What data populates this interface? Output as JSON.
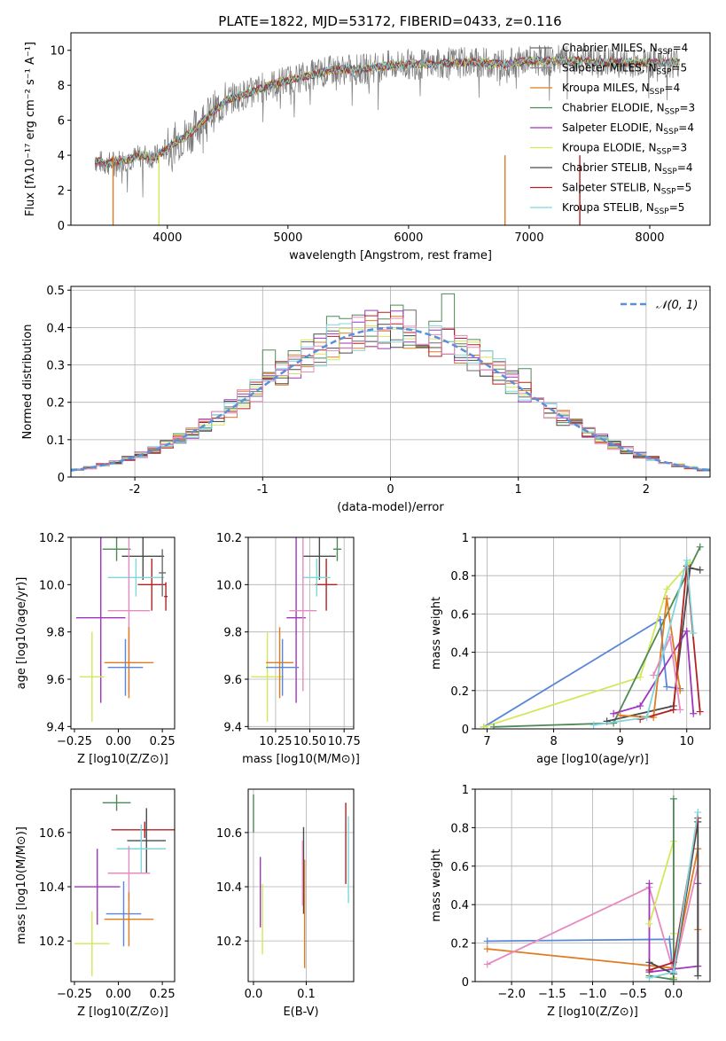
{
  "figure_title": "PLATE=1822, MJD=53172, FIBERID=0433, z=0.116",
  "colors": {
    "cm": "#6b6b6b",
    "sm": "#8a8a8a",
    "km": "#e07b1f",
    "ce": "#4f8a55",
    "se": "#a035c0",
    "ke": "#d2e85a",
    "cs": "#4a4a4a",
    "ss": "#b22222",
    "ks": "#7fd6dd",
    "pink": "#e68bc0",
    "blue": "#5b87d9"
  },
  "chart_data": [
    {
      "id": "spectrum",
      "type": "line",
      "xlabel": "wavelength [Angstrom, rest frame]",
      "ylabel": "Flux [fλ10⁻¹⁷ erg cm⁻² s⁻¹ A⁻¹]",
      "xlim": [
        3200,
        8500
      ],
      "ylim": [
        0,
        11
      ],
      "xticks": [
        4000,
        5000,
        6000,
        7000,
        8000
      ],
      "yticks": [
        0,
        2,
        4,
        6,
        8,
        10
      ],
      "legend_position": "top-right",
      "continuum": {
        "x": [
          3400,
          3500,
          3600,
          3700,
          3800,
          3900,
          4000,
          4100,
          4200,
          4300,
          4400,
          4500,
          4700,
          4800,
          5000,
          5200,
          5400,
          5600,
          5800,
          6000,
          6200,
          6400,
          6600,
          6800,
          7000,
          7200,
          7400,
          7600,
          7800,
          8000,
          8200
        ],
        "y": [
          3.7,
          3.5,
          3.7,
          3.8,
          4.0,
          3.9,
          4.4,
          4.9,
          5.3,
          6.0,
          6.6,
          7.2,
          7.6,
          7.9,
          8.3,
          8.6,
          8.9,
          8.9,
          9.1,
          9.2,
          9.2,
          9.3,
          9.3,
          9.2,
          9.4,
          9.4,
          9.4,
          9.3,
          9.3,
          9.3,
          9.3
        ]
      },
      "series": [
        {
          "name": "Chabrier MILES",
          "nssp": "4",
          "color_key": "cm"
        },
        {
          "name": "Salpeter MILES",
          "nssp": "5",
          "color_key": "sm"
        },
        {
          "name": "Kroupa MILES",
          "nssp": "4",
          "color_key": "km"
        },
        {
          "name": "Chabrier ELODIE",
          "nssp": "3",
          "color_key": "ce"
        },
        {
          "name": "Salpeter ELODIE",
          "nssp": "4",
          "color_key": "se"
        },
        {
          "name": "Kroupa ELODIE",
          "nssp": "3",
          "color_key": "ke"
        },
        {
          "name": "Chabrier STELIB",
          "nssp": "4",
          "color_key": "cs"
        },
        {
          "name": "Salpeter STELIB",
          "nssp": "5",
          "color_key": "ss"
        },
        {
          "name": "Kroupa STELIB",
          "nssp": "5",
          "color_key": "ks"
        }
      ]
    },
    {
      "id": "residuals",
      "type": "histogram",
      "xlabel": "(data-model)/error",
      "ylabel": "Normed distribution",
      "xlim": [
        -2.5,
        2.5
      ],
      "ylim": [
        0,
        0.51
      ],
      "xticks": [
        -2,
        -1,
        0,
        1,
        2
      ],
      "yticks": [
        0.0,
        0.1,
        0.2,
        0.3,
        0.4,
        0.5
      ],
      "legend": "𝒩(0, 1)",
      "legend_position": "top-right",
      "grid": true,
      "bin_width": 0.1,
      "extra_peaks": [
        [
          0.45,
          0.49
        ],
        [
          -0.45,
          0.43
        ],
        [
          0.05,
          0.46
        ],
        [
          -0.95,
          0.34
        ],
        [
          1.05,
          0.29
        ]
      ],
      "gaussian": {
        "mean": 0,
        "sigma": 1
      }
    },
    {
      "id": "age_vs_z",
      "type": "errorbar",
      "xlabel": "Z [log10(Z/Z⊙)]",
      "ylabel": "age [log10(age/yr)]",
      "xlim": [
        -0.27,
        0.32
      ],
      "ylim": [
        9.39,
        10.2
      ],
      "xticks": [
        -0.25,
        0.0,
        0.25
      ],
      "xticklabels": [
        "−0.25",
        "0.00",
        "0.25"
      ],
      "yticks": [
        9.4,
        9.6,
        9.8,
        10.0,
        10.2
      ],
      "yticklabels": [
        "9.4",
        "9.6",
        "9.8",
        "10.0",
        "10.2"
      ],
      "points": [
        {
          "c": "ce",
          "x": -0.01,
          "xe": 0.08,
          "y": 10.15,
          "ye": 0.05
        },
        {
          "c": "cs",
          "x": 0.14,
          "xe": 0.12,
          "y": 10.12,
          "ye": 0.1
        },
        {
          "c": "ss",
          "x": 0.19,
          "xe": 0.08,
          "y": 10.0,
          "ye": 0.11
        },
        {
          "c": "ks",
          "x": 0.1,
          "xe": 0.16,
          "y": 10.03,
          "ye": 0.08
        },
        {
          "c": "se",
          "x": -0.1,
          "xe": 0.14,
          "y": 9.86,
          "ye": 0.36
        },
        {
          "c": "pink",
          "x": 0.06,
          "xe": 0.12,
          "y": 9.89,
          "ye": 0.34
        },
        {
          "c": "ke",
          "x": -0.15,
          "xe": 0.07,
          "y": 9.61,
          "ye": 0.19
        },
        {
          "c": "km",
          "x": 0.06,
          "xe": 0.14,
          "y": 9.67,
          "ye": 0.15
        },
        {
          "c": "blue",
          "x": 0.04,
          "xe": 0.1,
          "y": 9.65,
          "ye": 0.12
        },
        {
          "c": "cm",
          "x": 0.25,
          "xe": 0.02,
          "y": 10.05,
          "ye": 0.1
        },
        {
          "c": "ss",
          "x": 0.27,
          "xe": 0.01,
          "y": 9.95,
          "ye": 0.06
        }
      ]
    },
    {
      "id": "age_vs_mass",
      "type": "errorbar",
      "xlabel": "mass [log10(M/M⊙)]",
      "ylabel": "",
      "xlim": [
        10.05,
        10.82
      ],
      "ylim": [
        9.39,
        10.2
      ],
      "xticks": [
        10.25,
        10.5,
        10.75
      ],
      "xticklabels": [
        "10.25",
        "10.50",
        "10.75"
      ],
      "yticks": [
        9.4,
        9.6,
        9.8,
        10.0,
        10.2
      ],
      "yticklabels": [
        "9.4",
        "9.6",
        "9.8",
        "10.0",
        "10.2"
      ],
      "points": [
        {
          "c": "ce",
          "x": 10.7,
          "xe": 0.03,
          "y": 10.15,
          "ye": 0.05
        },
        {
          "c": "cs",
          "x": 10.57,
          "xe": 0.12,
          "y": 10.12,
          "ye": 0.1
        },
        {
          "c": "ss",
          "x": 10.62,
          "xe": 0.08,
          "y": 10.0,
          "ye": 0.11
        },
        {
          "c": "ks",
          "x": 10.55,
          "xe": 0.1,
          "y": 10.03,
          "ye": 0.08
        },
        {
          "c": "se",
          "x": 10.4,
          "xe": 0.07,
          "y": 9.86,
          "ye": 0.36
        },
        {
          "c": "pink",
          "x": 10.45,
          "xe": 0.1,
          "y": 9.89,
          "ye": 0.34
        },
        {
          "c": "ke",
          "x": 10.19,
          "xe": 0.12,
          "y": 9.61,
          "ye": 0.19
        },
        {
          "c": "km",
          "x": 10.28,
          "xe": 0.1,
          "y": 9.67,
          "ye": 0.15
        },
        {
          "c": "blue",
          "x": 10.3,
          "xe": 0.12,
          "y": 9.65,
          "ye": 0.12
        }
      ]
    },
    {
      "id": "weight_vs_age",
      "type": "line",
      "xlabel": "age [log10(age/yr)]",
      "ylabel": "mass weight",
      "xlim": [
        6.82,
        10.35
      ],
      "ylim": [
        0,
        1.0
      ],
      "xticks": [
        7,
        8,
        9,
        10
      ],
      "yticks": [
        0.0,
        0.2,
        0.4,
        0.6,
        0.8,
        1.0
      ],
      "grid": true,
      "series": [
        {
          "c": "blue",
          "x": [
            6.95,
            9.6,
            9.7,
            9.9
          ],
          "y": [
            0.01,
            0.57,
            0.22,
            0.21
          ]
        },
        {
          "c": "ke",
          "x": [
            6.95,
            9.3,
            9.7,
            10.05
          ],
          "y": [
            0.01,
            0.27,
            0.73,
            0.87
          ]
        },
        {
          "c": "ce",
          "x": [
            7.1,
            8.9,
            10.2
          ],
          "y": [
            0.01,
            0.03,
            0.95
          ]
        },
        {
          "c": "cs",
          "x": [
            8.8,
            9.8,
            10.05,
            10.2
          ],
          "y": [
            0.04,
            0.12,
            0.84,
            0.83
          ]
        },
        {
          "c": "se",
          "x": [
            8.9,
            9.3,
            10.0,
            10.1
          ],
          "y": [
            0.08,
            0.12,
            0.51,
            0.08
          ]
        },
        {
          "c": "km",
          "x": [
            9.0,
            9.5,
            9.7,
            9.9
          ],
          "y": [
            0.07,
            0.06,
            0.68,
            0.2
          ]
        },
        {
          "c": "ss",
          "x": [
            9.3,
            9.8,
            10.0,
            10.2
          ],
          "y": [
            0.05,
            0.1,
            0.85,
            0.09
          ]
        },
        {
          "c": "pink",
          "x": [
            9.5,
            9.75,
            9.9
          ],
          "y": [
            0.28,
            0.48,
            0.1
          ]
        },
        {
          "c": "ks",
          "x": [
            8.6,
            9.4,
            10.0,
            10.1
          ],
          "y": [
            0.02,
            0.06,
            0.88,
            0.5
          ]
        }
      ]
    },
    {
      "id": "mass_vs_z",
      "type": "errorbar",
      "xlabel": "Z [log10(Z/Z⊙)]",
      "ylabel": "mass [log10(M/M⊙)]",
      "xlim": [
        -0.27,
        0.32
      ],
      "ylim": [
        10.05,
        10.76
      ],
      "xticks": [
        -0.25,
        0.0,
        0.25
      ],
      "xticklabels": [
        "−0.25",
        "0.00",
        "0.25"
      ],
      "yticks": [
        10.2,
        10.4,
        10.6
      ],
      "yticklabels": [
        "10.2",
        "10.4",
        "10.6"
      ],
      "points": [
        {
          "c": "ce",
          "x": -0.01,
          "xe": 0.08,
          "y": 10.71,
          "ye": 0.03
        },
        {
          "c": "ss",
          "x": 0.15,
          "xe": 0.19,
          "y": 10.61,
          "ye": 0.03
        },
        {
          "c": "cs",
          "x": 0.16,
          "xe": 0.11,
          "y": 10.57,
          "ye": 0.12
        },
        {
          "c": "ks",
          "x": 0.13,
          "xe": 0.14,
          "y": 10.54,
          "ye": 0.09
        },
        {
          "c": "se",
          "x": -0.12,
          "xe": 0.13,
          "y": 10.4,
          "ye": 0.14
        },
        {
          "c": "pink",
          "x": 0.06,
          "xe": 0.12,
          "y": 10.45,
          "ye": 0.1
        },
        {
          "c": "ke",
          "x": -0.15,
          "xe": 0.1,
          "y": 10.19,
          "ye": 0.12
        },
        {
          "c": "blue",
          "x": 0.03,
          "xe": 0.1,
          "y": 10.3,
          "ye": 0.12
        },
        {
          "c": "km",
          "x": 0.06,
          "xe": 0.14,
          "y": 10.28,
          "ye": 0.1
        }
      ]
    },
    {
      "id": "mass_vs_ebv",
      "type": "errorbar",
      "xlabel": "E(B-V)",
      "ylabel": "",
      "xlim": [
        -0.01,
        0.19
      ],
      "ylim": [
        10.05,
        10.76
      ],
      "xticks": [
        0.0,
        0.1
      ],
      "xticklabels": [
        "0.0",
        "0.1"
      ],
      "yticks": [
        10.2,
        10.4,
        10.6
      ],
      "yticklabels": [
        "10.2",
        "10.4",
        "10.6"
      ],
      "points": [
        {
          "c": "ce",
          "x": 0.0,
          "xe": 0,
          "y": 10.67,
          "ye": 0.07
        },
        {
          "c": "se",
          "x": 0.013,
          "xe": 0,
          "y": 10.38,
          "ye": 0.13
        },
        {
          "c": "ke",
          "x": 0.017,
          "xe": 0,
          "y": 10.28,
          "ye": 0.13
        },
        {
          "c": "cs",
          "x": 0.095,
          "xe": 0,
          "y": 10.46,
          "ye": 0.16
        },
        {
          "c": "pink",
          "x": 0.093,
          "xe": 0,
          "y": 10.45,
          "ye": 0.12
        },
        {
          "c": "km",
          "x": 0.097,
          "xe": 0,
          "y": 10.3,
          "ye": 0.2
        },
        {
          "c": "ss",
          "x": 0.175,
          "xe": 0,
          "y": 10.56,
          "ye": 0.15
        },
        {
          "c": "ks",
          "x": 0.18,
          "xe": 0,
          "y": 10.5,
          "ye": 0.16
        }
      ]
    },
    {
      "id": "weight_vs_z",
      "type": "line",
      "xlabel": "Z [log10(Z/Z⊙)]",
      "ylabel": "mass weight",
      "xlim": [
        -2.45,
        0.45
      ],
      "ylim": [
        0,
        1.0
      ],
      "xticks": [
        -2.0,
        -1.5,
        -1.0,
        -0.5,
        0.0
      ],
      "xticklabels": [
        "−2.0",
        "−1.5",
        "−1.0",
        "−0.5",
        "0.0"
      ],
      "yticks": [
        0.0,
        0.2,
        0.4,
        0.6,
        0.8,
        1.0
      ],
      "grid": true,
      "series": [
        {
          "c": "blue",
          "x": [
            -2.3,
            -0.05,
            0.0
          ],
          "y": [
            0.21,
            0.22,
            0.02
          ]
        },
        {
          "c": "km",
          "x": [
            -2.3,
            0.0,
            0.3,
            0.3
          ],
          "y": [
            0.17,
            0.07,
            0.69,
            0.27
          ]
        },
        {
          "c": "pink",
          "x": [
            -2.3,
            -0.3,
            0.0,
            0.3
          ],
          "y": [
            0.09,
            0.49,
            0.05,
            0.6
          ]
        },
        {
          "c": "se",
          "x": [
            -0.3,
            -0.3,
            0.3,
            0.3
          ],
          "y": [
            0.51,
            0.05,
            0.08,
            0.51
          ]
        },
        {
          "c": "ke",
          "x": [
            -0.3,
            0.0,
            0.0,
            0.0
          ],
          "y": [
            0.3,
            0.73,
            0.02,
            0.25
          ]
        },
        {
          "c": "ce",
          "x": [
            -0.3,
            0.0,
            0.0
          ],
          "y": [
            0.03,
            0.01,
            0.95
          ]
        },
        {
          "c": "cs",
          "x": [
            -0.3,
            0.0,
            0.3,
            0.3
          ],
          "y": [
            0.1,
            0.04,
            0.83,
            0.03
          ]
        },
        {
          "c": "ss",
          "x": [
            -0.3,
            0.0,
            0.3
          ],
          "y": [
            0.06,
            0.1,
            0.85
          ]
        },
        {
          "c": "ks",
          "x": [
            -0.3,
            0.0,
            0.3
          ],
          "y": [
            0.02,
            0.05,
            0.88
          ]
        }
      ]
    }
  ]
}
